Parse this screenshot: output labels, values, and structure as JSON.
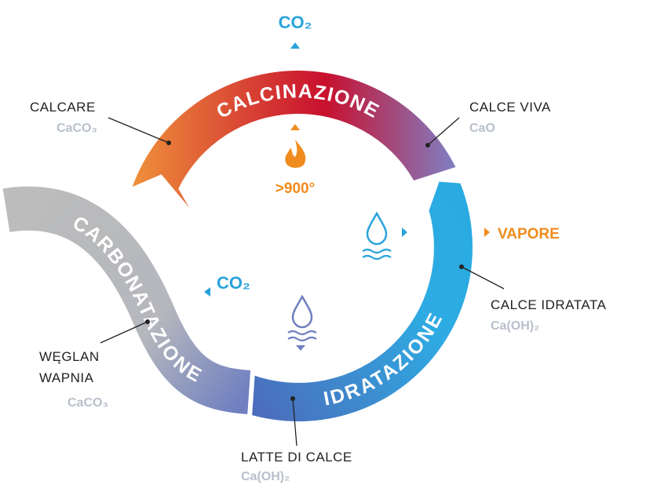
{
  "top_output": "CO₂",
  "process_temp": ">900°",
  "vapor": "VAPORE",
  "carbonation_input": "CO₂",
  "stages": [
    {
      "label": "CALCINAZIONE"
    },
    {
      "label": "IDRATAZIONE"
    },
    {
      "label": "CARBONATAZIONE"
    }
  ],
  "compounds": [
    {
      "name": "CALCARE",
      "formula": "CaCO₃"
    },
    {
      "name": "CALCE VIVA",
      "formula": "CaO"
    },
    {
      "name": "CALCE IDRATATA",
      "formula": "Ca(OH)₂"
    },
    {
      "name": "LATTE DI CALCE",
      "formula": "Ca(OH)₂"
    },
    {
      "name_lines": [
        "WĘGLAN",
        "WAPNIA"
      ],
      "formula": "CaCO₃"
    }
  ]
}
